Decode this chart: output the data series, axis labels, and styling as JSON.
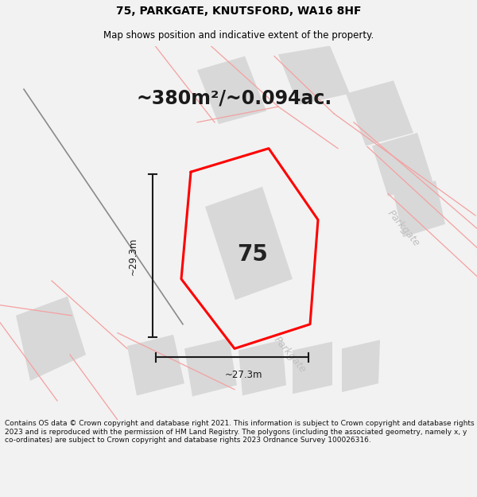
{
  "title": "75, PARKGATE, KNUTSFORD, WA16 8HF",
  "subtitle": "Map shows position and indicative extent of the property.",
  "area_text": "~380m²/~0.094ac.",
  "number_label": "75",
  "dim_width": "~27.3m",
  "dim_height": "~29.3m",
  "road_label_1": "Parkgate",
  "road_label_2": "Parkgate",
  "copyright_text": "Contains OS data © Crown copyright and database right 2021. This information is subject to Crown copyright and database rights 2023 and is reproduced with the permission of HM Land Registry. The polygons (including the associated geometry, namely x, y co-ordinates) are subject to Crown copyright and database rights 2023 Ordnance Survey 100026316.",
  "bg_color": "#f2f2f2",
  "map_bg": "#f8f8f8",
  "border_color": "#ff0000",
  "dim_line_color": "#1a1a1a",
  "figsize": [
    6.0,
    6.25
  ],
  "dpi": 100,
  "title_fontsize": 10,
  "subtitle_fontsize": 8.5,
  "area_fontsize": 17,
  "number_fontsize": 20,
  "dim_fontsize": 8.5,
  "road_fontsize": 9
}
